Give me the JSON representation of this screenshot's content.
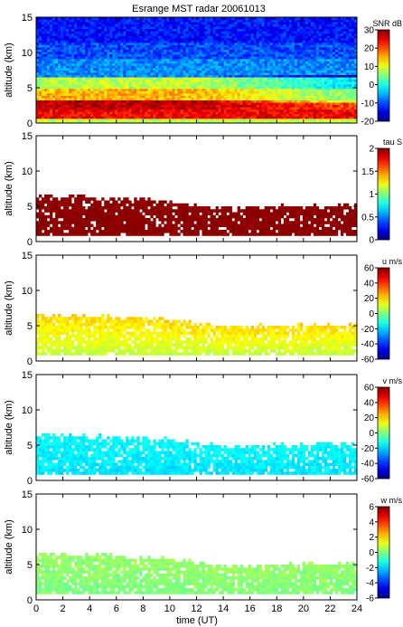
{
  "title": "Esrange MST radar 20061013",
  "xlabel": "time (UT)",
  "chart_data": [
    {
      "type": "heatmap",
      "field": "snr",
      "ylabel": "altitude (km)",
      "colorbar_label": "SNR dB",
      "xlim": [
        0,
        24
      ],
      "ylim": [
        0,
        15
      ],
      "x_ticks": [
        "0",
        "2",
        "4",
        "6",
        "8",
        "10",
        "12",
        "14",
        "16",
        "18",
        "20",
        "22",
        "24"
      ],
      "y_ticks": [
        "0",
        "5",
        "10",
        "15"
      ],
      "clim": [
        -20,
        30
      ],
      "cbar_ticks": [
        "30",
        "20",
        "10",
        "0",
        "-10",
        "-20"
      ],
      "colormap": "jet",
      "bands": [
        {
          "alt_from": 0.0,
          "alt_to": 0.7,
          "value": 8
        },
        {
          "alt_from": 0.7,
          "alt_to": 1.8,
          "value": 24
        },
        {
          "alt_from": 1.8,
          "alt_to": 3.2,
          "value": 27
        },
        {
          "alt_from": 3.2,
          "alt_to": 5.0,
          "value": 15
        },
        {
          "alt_from": 5.0,
          "alt_to": 6.5,
          "value": 8
        },
        {
          "alt_from": 6.5,
          "alt_to": 9.0,
          "value": -7
        },
        {
          "alt_from": 9.0,
          "alt_to": 11.5,
          "value": -10
        },
        {
          "alt_from": 11.5,
          "alt_to": 15.0,
          "value": -13
        }
      ],
      "notes": "Strong echoes (red) between 1 and 3.5 km, decaying altitude of layer edge after 12 UT"
    },
    {
      "type": "heatmap",
      "field": "tau",
      "ylabel": "altitude (km)",
      "colorbar_label": "tau S",
      "xlim": [
        0,
        24
      ],
      "ylim": [
        0,
        15
      ],
      "x_ticks": [
        "0",
        "2",
        "4",
        "6",
        "8",
        "10",
        "12",
        "14",
        "16",
        "18",
        "20",
        "22",
        "24"
      ],
      "y_ticks": [
        "0",
        "5",
        "10",
        "15"
      ],
      "clim": [
        0,
        2
      ],
      "cbar_ticks": [
        "2",
        "1.5",
        "1",
        "0.5",
        "0"
      ],
      "colormap": "jet",
      "layer_top_km": [
        [
          0,
          6.5
        ],
        [
          6,
          6.2
        ],
        [
          10,
          5.8
        ],
        [
          12,
          5.3
        ],
        [
          14,
          4.8
        ],
        [
          18,
          5.0
        ],
        [
          24,
          5.2
        ]
      ],
      "layer_bottom_km": 1.0,
      "value": 2.0
    },
    {
      "type": "heatmap",
      "field": "u",
      "ylabel": "altitude (km)",
      "colorbar_label": "u m/s",
      "xlim": [
        0,
        24
      ],
      "ylim": [
        0,
        15
      ],
      "x_ticks": [
        "0",
        "2",
        "4",
        "6",
        "8",
        "10",
        "12",
        "14",
        "16",
        "18",
        "20",
        "22",
        "24"
      ],
      "y_ticks": [
        "0",
        "5",
        "10",
        "15"
      ],
      "clim": [
        -60,
        60
      ],
      "cbar_ticks": [
        "60",
        "40",
        "20",
        "0",
        "-20",
        "-40",
        "-60"
      ],
      "colormap": "jet",
      "layer_top_km": [
        [
          0,
          6.5
        ],
        [
          6,
          6.2
        ],
        [
          10,
          5.8
        ],
        [
          12,
          5.3
        ],
        [
          14,
          4.8
        ],
        [
          18,
          5.0
        ],
        [
          24,
          5.2
        ]
      ],
      "layer_bottom_km": 1.0,
      "value_top": 20,
      "value_bottom": 8
    },
    {
      "type": "heatmap",
      "field": "v",
      "ylabel": "altitude (km)",
      "colorbar_label": "v m/s",
      "xlim": [
        0,
        24
      ],
      "ylim": [
        0,
        15
      ],
      "x_ticks": [
        "0",
        "2",
        "4",
        "6",
        "8",
        "10",
        "12",
        "14",
        "16",
        "18",
        "20",
        "22",
        "24"
      ],
      "y_ticks": [
        "0",
        "5",
        "10",
        "15"
      ],
      "clim": [
        -60,
        60
      ],
      "cbar_ticks": [
        "60",
        "40",
        "20",
        "0",
        "-20",
        "-40",
        "-60"
      ],
      "colormap": "jet",
      "layer_top_km": [
        [
          0,
          6.5
        ],
        [
          6,
          6.2
        ],
        [
          10,
          5.8
        ],
        [
          12,
          5.3
        ],
        [
          14,
          4.8
        ],
        [
          18,
          5.0
        ],
        [
          24,
          5.2
        ]
      ],
      "layer_bottom_km": 1.0,
      "value_top": -15,
      "value_bottom": -18
    },
    {
      "type": "heatmap",
      "field": "w",
      "ylabel": "altitude (km)",
      "colorbar_label": "w m/s",
      "xlim": [
        0,
        24
      ],
      "ylim": [
        0,
        15
      ],
      "x_ticks": [
        "0",
        "2",
        "4",
        "6",
        "8",
        "10",
        "12",
        "14",
        "16",
        "18",
        "20",
        "22",
        "24"
      ],
      "y_ticks": [
        "0",
        "5",
        "10",
        "15"
      ],
      "clim": [
        -6,
        6
      ],
      "cbar_ticks": [
        "6",
        "4",
        "2",
        "0",
        "-2",
        "-4",
        "-6"
      ],
      "colormap": "jet",
      "layer_top_km": [
        [
          0,
          6.5
        ],
        [
          6,
          6.2
        ],
        [
          10,
          5.8
        ],
        [
          12,
          5.3
        ],
        [
          14,
          4.8
        ],
        [
          18,
          5.0
        ],
        [
          24,
          5.2
        ]
      ],
      "layer_bottom_km": 1.0,
      "value_top": 0.3,
      "value_bottom": 0.0
    }
  ]
}
